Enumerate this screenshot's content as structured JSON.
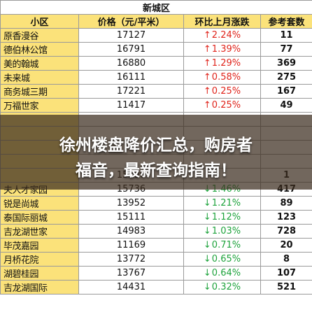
{
  "table": {
    "region": "新城区",
    "headers": {
      "name": "小区",
      "price": "价格（元/平米）",
      "change": "环比上月涨跌",
      "ref": "参考套数"
    },
    "rows": [
      {
        "name": "原香漫谷",
        "price": "17127",
        "dir": "up",
        "change": "2.24%",
        "ref": "11"
      },
      {
        "name": "德伯林公馆",
        "price": "16791",
        "dir": "up",
        "change": "1.39%",
        "ref": "77"
      },
      {
        "name": "美的翰城",
        "price": "16880",
        "dir": "up",
        "change": "1.29%",
        "ref": "369"
      },
      {
        "name": "未来城",
        "price": "16111",
        "dir": "up",
        "change": "0.58%",
        "ref": "275"
      },
      {
        "name": "商务城三期",
        "price": "17221",
        "dir": "up",
        "change": "0.25%",
        "ref": "167"
      },
      {
        "name": "万福世家",
        "price": "11417",
        "dir": "up",
        "change": "0.25%",
        "ref": "49"
      },
      {
        "name": "",
        "price": "",
        "dir": "",
        "change": "",
        "ref": ""
      },
      {
        "name": "",
        "price": "",
        "dir": "",
        "change": "",
        "ref": ""
      },
      {
        "name": "",
        "price": "",
        "dir": "",
        "change": "",
        "ref": ""
      },
      {
        "name": "",
        "price": "",
        "dir": "",
        "change": "",
        "ref": ""
      },
      {
        "name": "",
        "price": "15180",
        "dir": "",
        "change": "",
        "ref": "1"
      },
      {
        "name": "夫人才家园",
        "price": "15736",
        "dir": "down",
        "change": "1.46%",
        "ref": "417"
      },
      {
        "name": "锐是尚城",
        "price": "13952",
        "dir": "down",
        "change": "1.21%",
        "ref": "89"
      },
      {
        "name": "泰国际丽城",
        "price": "15111",
        "dir": "down",
        "change": "1.12%",
        "ref": "123"
      },
      {
        "name": "吉龙湖世家",
        "price": "14983",
        "dir": "down",
        "change": "1.03%",
        "ref": "728"
      },
      {
        "name": "毕茂嘉园",
        "price": "11169",
        "dir": "down",
        "change": "0.71%",
        "ref": "20"
      },
      {
        "name": "月桥花院",
        "price": "13772",
        "dir": "down",
        "change": "0.65%",
        "ref": "8"
      },
      {
        "name": "湖碧桂园",
        "price": "13767",
        "dir": "down",
        "change": "0.64%",
        "ref": "107"
      },
      {
        "name": "吉龙湖国际",
        "price": "14431",
        "dir": "down",
        "change": "0.32%",
        "ref": "521"
      }
    ]
  },
  "overlay": {
    "line1": "徐州楼盘降价汇总，购房者",
    "line2": "福音，最新查询指南！"
  },
  "arrows": {
    "up": "↑",
    "down": "↓"
  },
  "colors": {
    "header_bg": "#fbe27a",
    "up": "#e0241b",
    "down": "#1ea33c",
    "overlay": "#3c2d1e"
  }
}
